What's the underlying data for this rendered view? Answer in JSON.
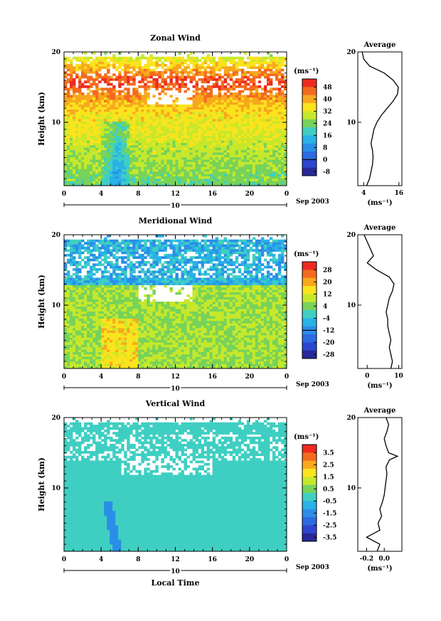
{
  "xlabel": "Local Time",
  "ylabel": "Height (km)",
  "unit_label": "(ms⁻¹)",
  "avg_unit": "(ms⁻¹)",
  "avg_title": "Average",
  "date_label": "Sep 2003",
  "day_label": "10",
  "x_ticks": [
    "0",
    "4",
    "8",
    "12",
    "16",
    "20",
    "0"
  ],
  "chart_data": [
    {
      "type": "heatmap",
      "title": "Zonal Wind",
      "x": [
        0,
        4,
        8,
        12,
        16,
        20,
        24
      ],
      "xlim": [
        0,
        24
      ],
      "ylim": [
        1,
        20
      ],
      "y_ticks": [
        10,
        20
      ],
      "colorbar": {
        "ticks": [
          "48",
          "40",
          "32",
          "24",
          "16",
          "8",
          "0",
          "-8"
        ],
        "colors": [
          "#ee2a20",
          "#f46a1e",
          "#f7a81d",
          "#fbe31e",
          "#c7e82a",
          "#77d35a",
          "#3fcfc2",
          "#29b2e6",
          "#2a8ee8",
          "#2c6ae0",
          "#2c46d0",
          "#28289a"
        ],
        "zero_index": 6
      },
      "field_model": {
        "base": 8,
        "jet_peak": 20,
        "jet_height": 14,
        "low_anomaly_time": 6
      },
      "average": {
        "xlim": [
          2,
          17
        ],
        "x_ticks": [
          "4",
          "16"
        ],
        "profile": [
          [
            5,
            1
          ],
          [
            6,
            2
          ],
          [
            6.5,
            3
          ],
          [
            7,
            4
          ],
          [
            7.2,
            5
          ],
          [
            7,
            6
          ],
          [
            6.5,
            7
          ],
          [
            7,
            8
          ],
          [
            7.5,
            9
          ],
          [
            8.5,
            10
          ],
          [
            10,
            11
          ],
          [
            12,
            12
          ],
          [
            14,
            13
          ],
          [
            15.5,
            14
          ],
          [
            15.8,
            15
          ],
          [
            14,
            16
          ],
          [
            11,
            17
          ],
          [
            6,
            18
          ],
          [
            4,
            19
          ],
          [
            3.5,
            20
          ]
        ]
      }
    },
    {
      "type": "heatmap",
      "title": "Meridional Wind",
      "x": [
        0,
        4,
        8,
        12,
        16,
        20,
        24
      ],
      "xlim": [
        0,
        24
      ],
      "ylim": [
        1,
        20
      ],
      "y_ticks": [
        10,
        20
      ],
      "colorbar": {
        "ticks": [
          "28",
          "20",
          "12",
          "4",
          "-4",
          "-12",
          "-20",
          "-28"
        ],
        "colors": [
          "#ee2a20",
          "#f46a1e",
          "#f7a81d",
          "#fbe31e",
          "#c7e82a",
          "#77d35a",
          "#3fcfc2",
          "#29b2e6",
          "#2a8ee8",
          "#2c6ae0",
          "#2c46d0",
          "#28289a"
        ],
        "zero_index": 5
      },
      "field_model": {
        "base": 6,
        "jet_peak": 0,
        "jet_height": 16
      },
      "average": {
        "xlim": [
          -3,
          11
        ],
        "x_ticks": [
          "0",
          "10"
        ],
        "profile": [
          [
            7.5,
            1
          ],
          [
            8,
            2
          ],
          [
            7.5,
            3
          ],
          [
            7,
            4
          ],
          [
            7.5,
            5
          ],
          [
            7,
            6
          ],
          [
            6.5,
            7
          ],
          [
            6.5,
            8
          ],
          [
            6,
            9
          ],
          [
            6.5,
            10
          ],
          [
            7,
            11
          ],
          [
            8,
            12
          ],
          [
            8.5,
            13
          ],
          [
            7,
            14
          ],
          [
            3,
            15
          ],
          [
            0,
            16
          ],
          [
            2,
            17
          ],
          [
            1,
            18
          ],
          [
            0,
            19
          ],
          [
            -1,
            20
          ]
        ]
      }
    },
    {
      "type": "heatmap",
      "title": "Vertical Wind",
      "x": [
        0,
        4,
        8,
        12,
        16,
        20,
        24
      ],
      "xlim": [
        0,
        24
      ],
      "ylim": [
        1,
        20
      ],
      "y_ticks": [
        10,
        20
      ],
      "colorbar": {
        "ticks": [
          "3.5",
          "2.5",
          "1.5",
          "0.5",
          "-0.5",
          "-1.5",
          "-2.5",
          "-3.5"
        ],
        "colors": [
          "#ee2a20",
          "#f46a1e",
          "#f7a81d",
          "#fbe31e",
          "#c7e82a",
          "#77d35a",
          "#3fcfc2",
          "#29b2e6",
          "#2a8ee8",
          "#2c6ae0",
          "#2c46d0",
          "#28289a"
        ],
        "zero_index": null
      },
      "field_model": {
        "base": 0,
        "jet_peak": 0,
        "jet_height": 15
      },
      "average": {
        "xlim": [
          -0.3,
          0.2
        ],
        "x_ticks": [
          "-0.2",
          "0.0"
        ],
        "profile": [
          [
            -0.08,
            1
          ],
          [
            -0.05,
            2
          ],
          [
            -0.2,
            3
          ],
          [
            -0.05,
            4
          ],
          [
            -0.07,
            5
          ],
          [
            -0.03,
            6
          ],
          [
            -0.05,
            7
          ],
          [
            -0.02,
            8
          ],
          [
            0.0,
            9
          ],
          [
            0.01,
            10
          ],
          [
            0.02,
            11
          ],
          [
            0.03,
            12
          ],
          [
            0.02,
            13
          ],
          [
            0.06,
            14
          ],
          [
            0.15,
            14.5
          ],
          [
            0.05,
            15
          ],
          [
            0.02,
            16
          ],
          [
            0.0,
            17
          ],
          [
            0.03,
            18
          ],
          [
            0.05,
            19
          ],
          [
            0.02,
            20
          ]
        ]
      }
    }
  ]
}
